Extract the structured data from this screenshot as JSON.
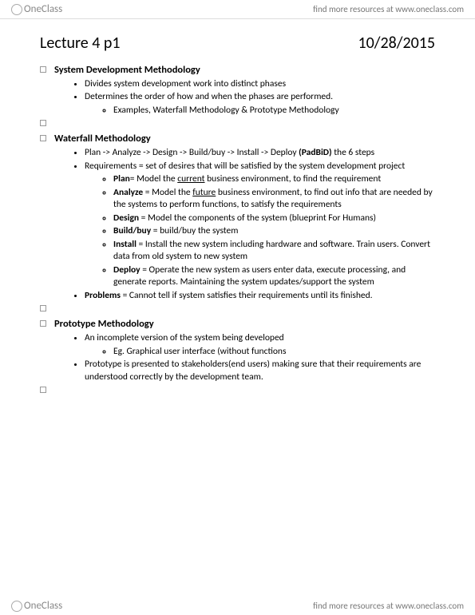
{
  "header": {
    "brand_name": "OneClass",
    "tagline": "find more resources at www.oneclass.com"
  },
  "page_title": "Lecture 4 p1",
  "page_date": "10/28/2015",
  "sections": [
    {
      "title": "System Development Methodology",
      "items": [
        {
          "text": "Divides system development work into distinct phases"
        },
        {
          "text": "Determines the order of how and when the phases are performed.",
          "sub": [
            {
              "text": "Examples, Waterfall Methodology & Prototype Methodology"
            }
          ]
        }
      ]
    },
    {
      "title": "Waterfall Methodology",
      "items": [
        {
          "html": "Plan -> Analyze -> Design -> Build/buy -> Install -> Deploy <span class='b'>(PadBiD)</span> the 6 steps"
        },
        {
          "html": "Requirements = set of desires that will be satisfied by the system development project",
          "sub": [
            {
              "html": "<span class='b'>Plan</span>= Model the <span class='u'>current</span> business environment, to find the requirement"
            },
            {
              "html": "<span class='b'>Analyze</span> = Model the <span class='u'>future</span> business environment, to find out info that are needed by the systems to perform functions, to satisfy the requirements"
            },
            {
              "html": "<span class='b'>Design</span> = Model the components of the system (blueprint For Humans)"
            },
            {
              "html": "<span class='b'>Build/buy</span> = build/buy the system"
            },
            {
              "html": "<span class='b'>Install</span> = Install the new system including hardware and software. Train users. Convert data from old system to new system"
            },
            {
              "html": "<span class='b'>Deploy</span> = Operate the new system as users enter data, execute processing, and generate reports. Maintaining the system updates/support the system"
            }
          ]
        },
        {
          "html": "<span class='b'>Problems</span> = Cannot tell if system satisfies their requirements until its finished."
        }
      ]
    },
    {
      "title": "Prototype Methodology",
      "items": [
        {
          "text": "An incomplete version of the system being developed",
          "sub": [
            {
              "text": "Eg. Graphical user interface (without functions"
            }
          ]
        },
        {
          "text": "Prototype is presented to stakeholders(end users) making sure that their requirements are understood correctly by the development team."
        }
      ]
    }
  ],
  "footer": {
    "brand_name": "OneClass",
    "tagline": "find more resources at www.oneclass.com"
  }
}
